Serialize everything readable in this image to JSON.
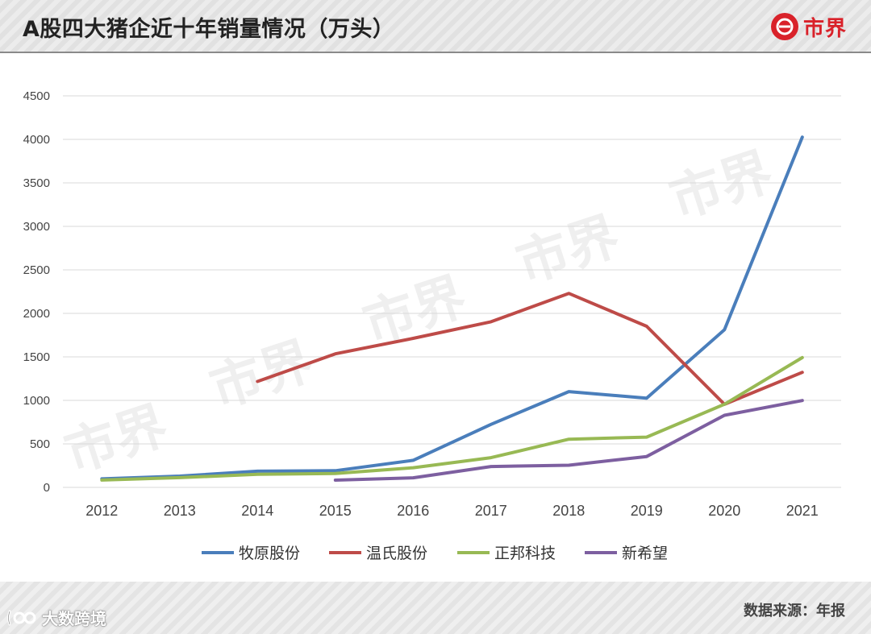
{
  "header": {
    "title": "A股四大猪企近十年销量情况（万头）",
    "logo_text": "市界"
  },
  "footer": {
    "source": "数据来源：年报",
    "brand": "大数跨境"
  },
  "watermark": "市界",
  "colors": {
    "muyuan": "#4a7ebb",
    "wens": "#be4b48",
    "zhengbang": "#98b954",
    "newhope": "#7d5fa0",
    "logo": "#d9222a",
    "grid": "#d9d9d9"
  },
  "chart_data": {
    "type": "line",
    "title": "A股四大猪企近十年销量情况（万头）",
    "xlabel": "",
    "ylabel": "",
    "x": [
      "2012",
      "2013",
      "2014",
      "2015",
      "2016",
      "2017",
      "2018",
      "2019",
      "2020",
      "2021"
    ],
    "ylim": [
      0,
      4500
    ],
    "yticks": [
      0,
      500,
      1000,
      1500,
      2000,
      2500,
      3000,
      3500,
      4000,
      4500
    ],
    "grid": true,
    "legend_position": "bottom",
    "series": [
      {
        "name": "牧原股份",
        "color": "#4a7ebb",
        "values": [
          98,
          130,
          186,
          192,
          311,
          724,
          1101,
          1025,
          1812,
          4026
        ]
      },
      {
        "name": "温氏股份",
        "color": "#be4b48",
        "values": [
          null,
          null,
          1218,
          1535,
          1713,
          1904,
          2230,
          1852,
          955,
          1322
        ]
      },
      {
        "name": "正邦科技",
        "color": "#98b954",
        "values": [
          84,
          112,
          150,
          160,
          226,
          342,
          554,
          578,
          956,
          1492
        ]
      },
      {
        "name": "新希望",
        "color": "#7d5fa0",
        "values": [
          null,
          null,
          null,
          83,
          110,
          240,
          255,
          355,
          829,
          998
        ]
      }
    ]
  }
}
